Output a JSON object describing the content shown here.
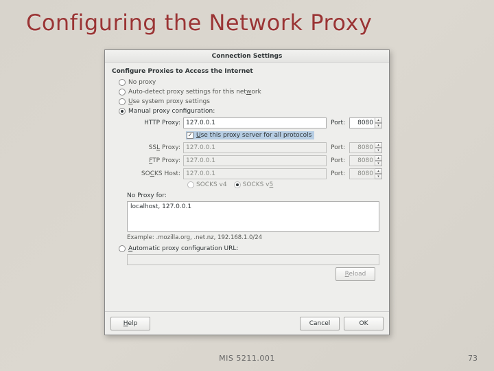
{
  "slide": {
    "title": "Configuring the Network Proxy",
    "course": "MIS 5211.001",
    "page": "73",
    "title_color": "#9a3434",
    "background_gradient": [
      "#d8d4cc",
      "#dcd8d0",
      "#d6d2ca"
    ]
  },
  "dialog": {
    "title": "Connection Settings",
    "group_title": "Configure Proxies to Access the Internet",
    "radios": {
      "no_proxy": "No proxy",
      "auto_detect_pre": "Auto-detect proxy settings for this net",
      "auto_detect_u": "w",
      "auto_detect_post": "ork",
      "system_pre": "",
      "system_u": "U",
      "system_post": "se system proxy settings",
      "manual": "Manual proxy configuration:",
      "auto_url_pre": "",
      "auto_url_u": "A",
      "auto_url_post": "utomatic proxy configuration URL:"
    },
    "proxies": {
      "http_label": "HTTP Proxy:",
      "ssl_label_pre": "SS",
      "ssl_label_u": "L",
      "ssl_label_post": " Proxy:",
      "ftp_label_pre": "",
      "ftp_label_u": "F",
      "ftp_label_post": "TP Proxy:",
      "socks_label_pre": "SO",
      "socks_label_u": "C",
      "socks_label_post": "KS Host:",
      "port_label": "Port:",
      "http_host": "127.0.0.1",
      "http_port": "8080",
      "ssl_host": "127.0.0.1",
      "ssl_port": "8080",
      "ftp_host": "127.0.0.1",
      "ftp_port": "8080",
      "socks_host": "127.0.0.1",
      "socks_port": "8080",
      "use_all_pre": "",
      "use_all_u": "U",
      "use_all_post": "se this proxy server for all protocols",
      "socks_v4": "SOCKS v4",
      "socks_v5_pre": "SOCKS v",
      "socks_v5_u": "5"
    },
    "noproxy": {
      "label": "No Proxy for:",
      "value": "localhost, 127.0.0.1",
      "example": "Example: .mozilla.org, .net.nz, 192.168.1.0/24"
    },
    "buttons": {
      "reload_pre": "",
      "reload_u": "R",
      "reload_post": "eload",
      "help_pre": "",
      "help_u": "H",
      "help_post": "elp",
      "cancel": "Cancel",
      "ok": "OK"
    }
  }
}
